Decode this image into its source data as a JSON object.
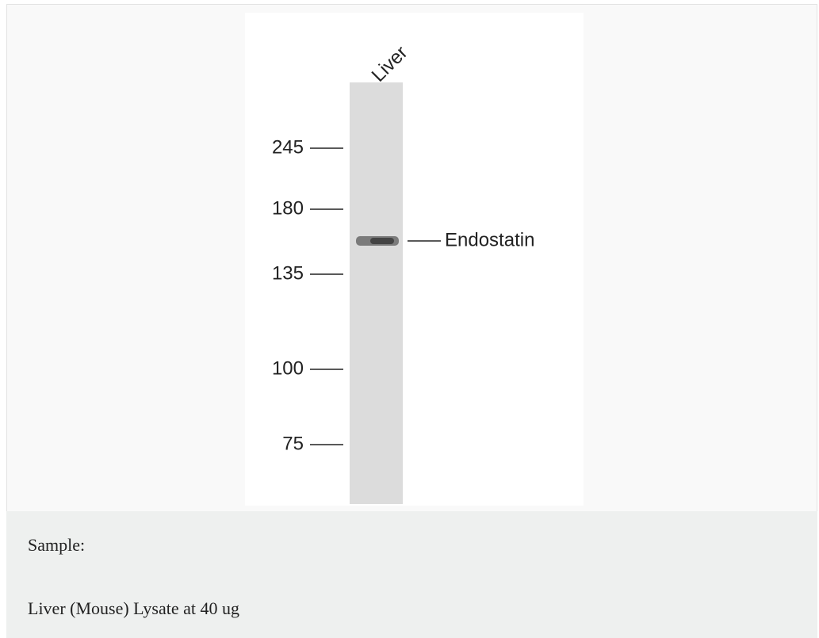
{
  "blot": {
    "lane_label": "Liver",
    "markers": [
      245,
      180,
      135,
      100,
      75
    ],
    "band_label": "Endostatin"
  },
  "caption": {
    "heading": "Sample:",
    "text": "Liver (Mouse) Lysate at 40 ug"
  }
}
